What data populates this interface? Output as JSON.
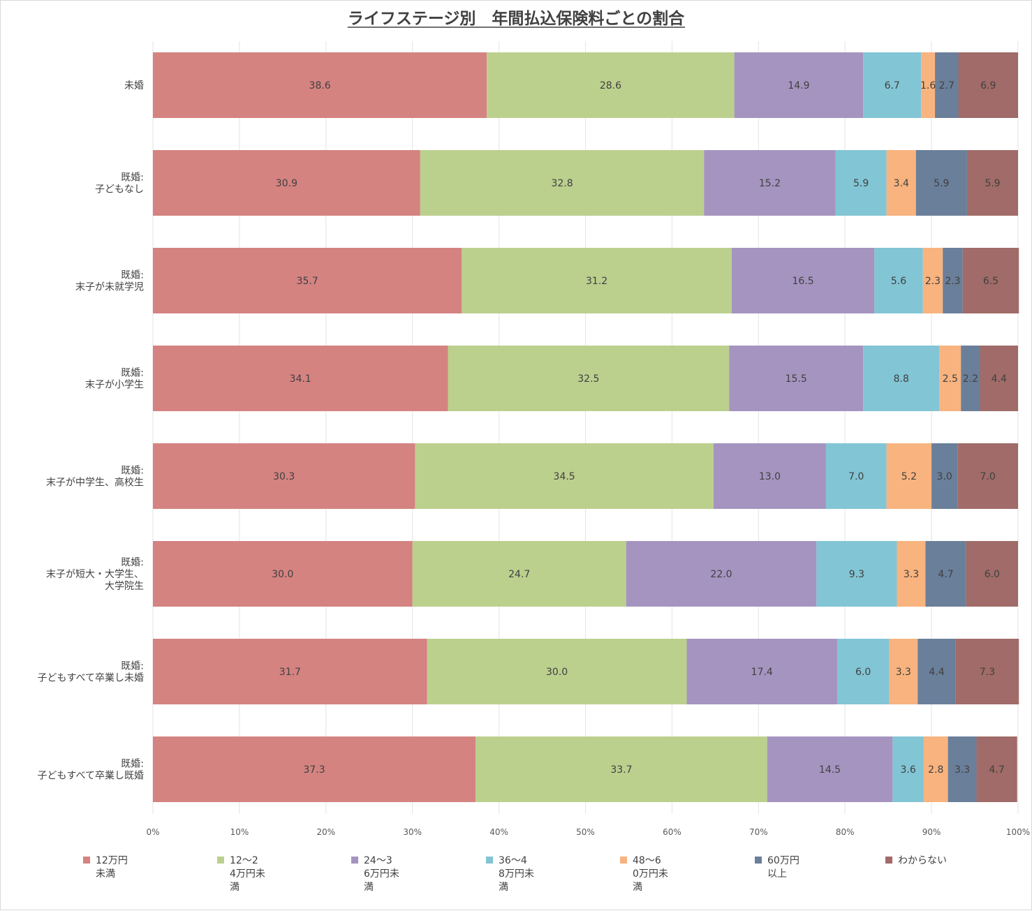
{
  "chart_data": {
    "type": "bar",
    "orientation": "horizontal",
    "stacked": "percent",
    "title": "ライフステージ別　年間払込保険料ごとの割合",
    "xlabel": "",
    "ylabel": "",
    "xlim": [
      0,
      100
    ],
    "grid": true,
    "legend_position": "bottom",
    "tick_labels": [
      "0%",
      "10%",
      "20%",
      "30%",
      "40%",
      "50%",
      "60%",
      "70%",
      "80%",
      "90%",
      "100%"
    ],
    "categories": [
      [
        "未婚"
      ],
      [
        "既婚:",
        "子どもなし"
      ],
      [
        "既婚:",
        "末子が未就学児"
      ],
      [
        "既婚:",
        "末子が小学生"
      ],
      [
        "既婚:",
        "末子が中学生、高校生"
      ],
      [
        "既婚:",
        "末子が短大・大学生、",
        "大学院生"
      ],
      [
        "既婚:",
        "子どもすべて卒業し未婚"
      ],
      [
        "既婚:",
        "子どもすべて卒業し既婚"
      ]
    ],
    "series": [
      {
        "name": [
          "12万円",
          "未満"
        ],
        "color": "#d48381",
        "values": [
          38.6,
          30.9,
          35.7,
          34.1,
          30.3,
          30.0,
          31.7,
          37.3
        ]
      },
      {
        "name": [
          "12～2",
          "4万円未",
          "満"
        ],
        "color": "#bcd08e",
        "values": [
          28.6,
          32.8,
          31.2,
          32.5,
          34.5,
          24.7,
          30.0,
          33.7
        ]
      },
      {
        "name": [
          "24～3",
          "6万円未",
          "満"
        ],
        "color": "#a594bf",
        "values": [
          14.9,
          15.2,
          16.5,
          15.5,
          13.0,
          22.0,
          17.4,
          14.5
        ]
      },
      {
        "name": [
          "36～4",
          "8万円未",
          "満"
        ],
        "color": "#82c5d5",
        "values": [
          6.7,
          5.9,
          5.6,
          8.8,
          7.0,
          9.3,
          6.0,
          3.6
        ]
      },
      {
        "name": [
          "48～6",
          "0万円未",
          "満"
        ],
        "color": "#f8b37e",
        "values": [
          1.6,
          3.4,
          2.3,
          2.5,
          5.2,
          3.3,
          3.3,
          2.8
        ]
      },
      {
        "name": [
          "60万円",
          "以上"
        ],
        "color": "#6a7f9a",
        "values": [
          2.7,
          5.9,
          2.3,
          2.2,
          3.0,
          4.7,
          4.4,
          3.3
        ]
      },
      {
        "name": [
          "わからない"
        ],
        "color": "#a06b68",
        "values": [
          6.9,
          5.9,
          6.5,
          4.4,
          7.0,
          6.0,
          7.3,
          4.7
        ]
      }
    ]
  }
}
